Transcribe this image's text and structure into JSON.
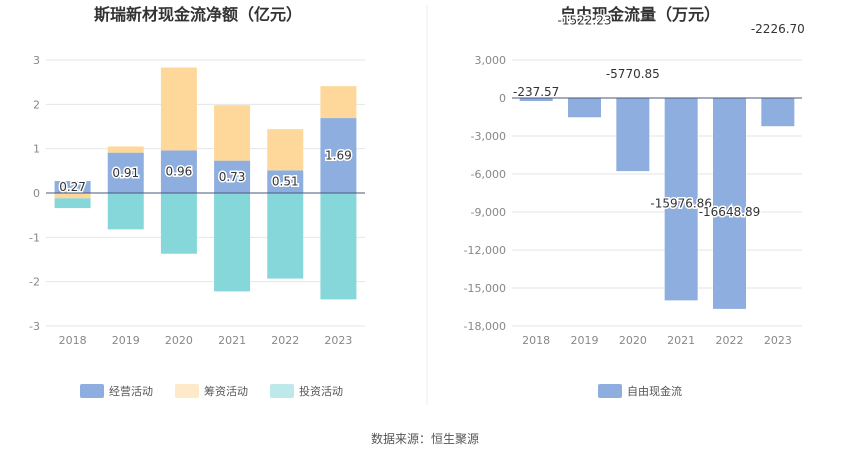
{
  "chart_data": [
    {
      "type": "bar",
      "stacked": true,
      "title": "斯瑞新材现金流净额（亿元）",
      "categories": [
        "2018",
        "2019",
        "2020",
        "2021",
        "2022",
        "2023"
      ],
      "series": [
        {
          "name": "经营活动",
          "color": "#8eaee0",
          "values": [
            0.27,
            0.91,
            0.96,
            0.73,
            0.51,
            1.69
          ]
        },
        {
          "name": "筹资活动",
          "color": "#fdd89a",
          "values": [
            -0.12,
            0.14,
            1.87,
            1.25,
            0.93,
            0.72
          ]
        },
        {
          "name": "投资活动",
          "color": "#86d7d9",
          "values": [
            -0.22,
            -0.82,
            -1.37,
            -2.22,
            -1.93,
            -2.4
          ]
        }
      ],
      "labels": [
        "0.27",
        "0.91",
        "0.96",
        "0.73",
        "0.51",
        "1.69"
      ],
      "ylim": [
        -3,
        3
      ],
      "yticks": [
        "3",
        "2",
        "1",
        "0",
        "-1",
        "-2",
        "-3"
      ],
      "grid": true,
      "legend": "bottom"
    },
    {
      "type": "bar",
      "title": "自由现金流量（万元）",
      "categories": [
        "2018",
        "2019",
        "2020",
        "2021",
        "2022",
        "2023"
      ],
      "series": [
        {
          "name": "自由现金流",
          "color": "#8eaee0",
          "values": [
            -237.57,
            -1522.23,
            -5770.85,
            -15976.86,
            -16648.89,
            -2226.7
          ]
        }
      ],
      "labels": [
        "-237.57",
        "-1522.23",
        "-5770.85",
        "-15976.86",
        "-16648.89",
        "-2226.70"
      ],
      "ylim": [
        -18000,
        3000
      ],
      "yticks": [
        "3,000",
        "0",
        "-3,000",
        "-6,000",
        "-9,000",
        "-12,000",
        "-15,000",
        "-18,000"
      ],
      "grid": true,
      "legend": "bottom"
    }
  ],
  "source": "数据来源：恒生聚源"
}
